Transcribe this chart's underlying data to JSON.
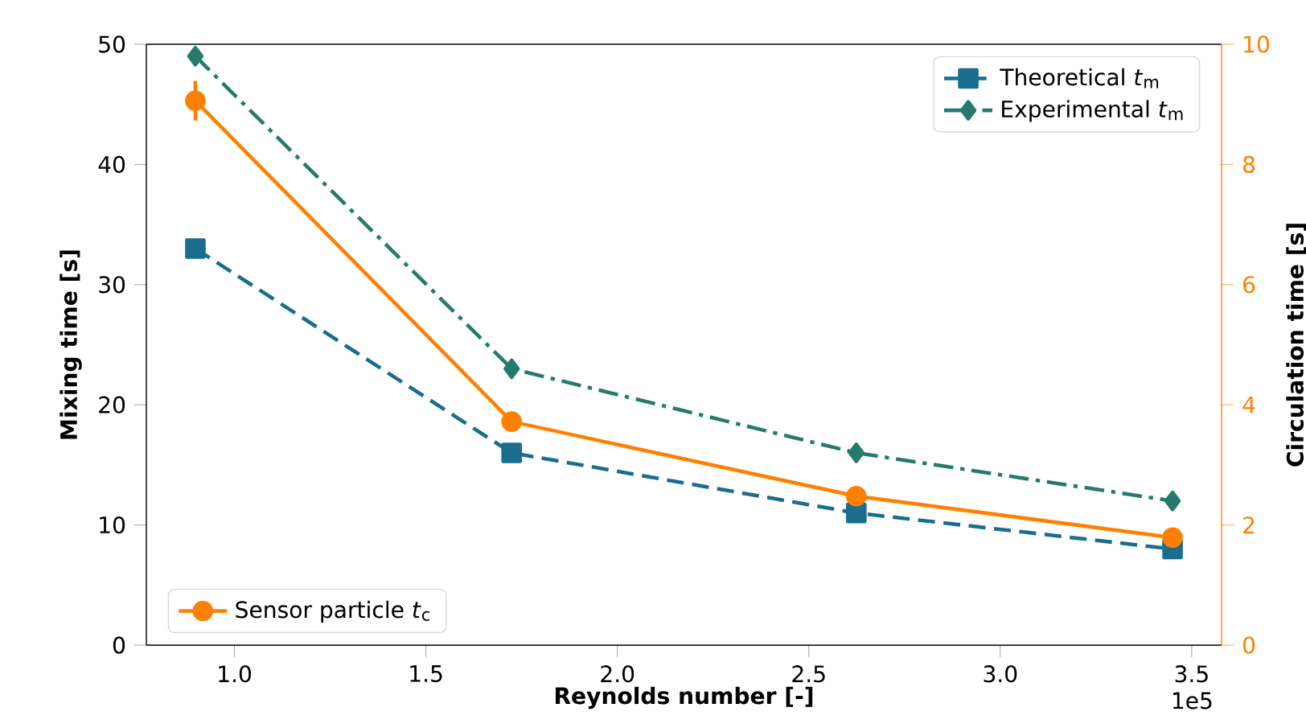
{
  "chart_data": {
    "type": "line",
    "xlabel": "Reynolds number [-]",
    "ylabel": "Mixing time [s]",
    "y2label": "Circulation time [s]",
    "x": [
      0.898,
      1.724,
      2.624,
      3.45
    ],
    "series": [
      {
        "name": "Theoretical *t*$_{m}$",
        "color": "#1a6d8f",
        "values": [
          33,
          16,
          11,
          8
        ],
        "marker": "square",
        "line_style": "dashed"
      },
      {
        "name": "Experimental *t*$_{m}$",
        "color": "#267a6c",
        "values": [
          49,
          23,
          16,
          12
        ],
        "marker": "diamond",
        "line_style": "dashdot"
      },
      {
        "name": "Sensor particle *t*$_{c}$",
        "color": "#ff8000",
        "values": [
          9.06,
          3.72,
          2.48,
          1.79
        ],
        "errors": [
          0.33,
          null,
          null,
          null
        ],
        "marker": "circle",
        "line_style": "solid",
        "axis": "y2"
      }
    ],
    "xlim": [
      0.77,
      3.578
    ],
    "xticks": [
      {
        "value": 1,
        "label": "1.0"
      },
      {
        "value": 1.5,
        "label": "1.5"
      },
      {
        "value": 2,
        "label": "2.0"
      },
      {
        "value": 2.5,
        "label": "2.5"
      },
      {
        "value": 3,
        "label": "3.0"
      },
      {
        "value": 3.5,
        "label": "3.5"
      }
    ],
    "ylim": [
      0,
      50
    ],
    "yticks": [
      0,
      10,
      20,
      30,
      40,
      50
    ],
    "y2lim": [
      0,
      10
    ],
    "y2ticks": [
      0,
      2,
      4,
      6,
      8,
      10
    ],
    "annotations": [
      "1e5"
    ],
    "legend": [
      "top right",
      "bottom left"
    ],
    "grid": false
  }
}
